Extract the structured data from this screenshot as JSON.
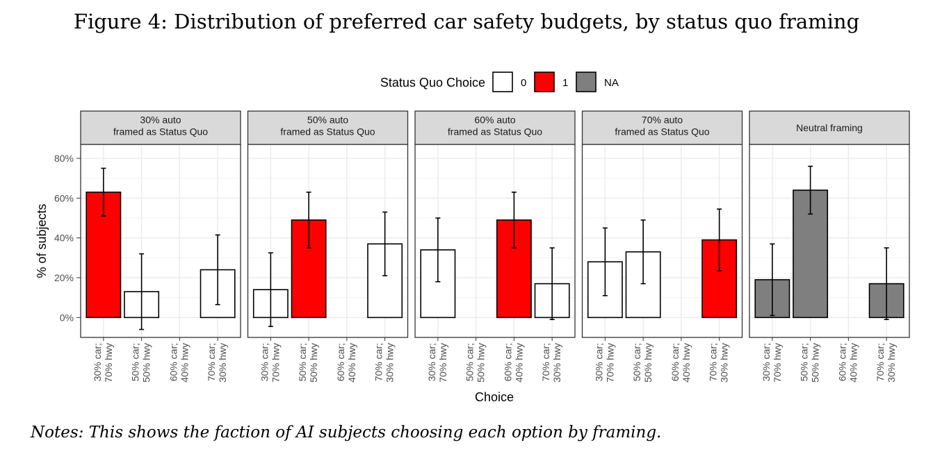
{
  "figure": {
    "title": "Figure 4: Distribution of preferred car safety budgets, by status quo framing",
    "notes": "Notes: This shows the faction of AI subjects choosing each option by framing."
  },
  "chart_data": {
    "type": "bar",
    "xlabel": "Choice",
    "ylabel": "% of subjects",
    "ylim": [
      -10,
      87
    ],
    "yticks": [
      0,
      20,
      40,
      60,
      80
    ],
    "ytick_labels": [
      "0%",
      "20%",
      "40%",
      "60%",
      "80%"
    ],
    "grid": true,
    "legend": {
      "title": "Status Quo Choice",
      "position": "top",
      "entries": [
        {
          "label": "0",
          "color": "#ffffff"
        },
        {
          "label": "1",
          "color": "#ff0000"
        },
        {
          "label": "NA",
          "color": "#7f7f7f"
        }
      ]
    },
    "categories": [
      [
        "30% car;",
        "70% hwy"
      ],
      [
        "50% car;",
        "50% hwy"
      ],
      [
        "60% car;",
        "40% hwy"
      ],
      [
        "70% car;",
        "30% hwy"
      ]
    ],
    "panels": [
      {
        "title": [
          "30% auto",
          "framed as Status Quo"
        ],
        "bars": [
          {
            "value": 63,
            "low": 51,
            "high": 75,
            "status_quo": "1"
          },
          {
            "value": 13,
            "low": -6,
            "high": 32,
            "status_quo": "0"
          },
          null,
          {
            "value": 24,
            "low": 6.5,
            "high": 41.5,
            "status_quo": "0"
          }
        ]
      },
      {
        "title": [
          "50% auto",
          "framed as Status Quo"
        ],
        "bars": [
          {
            "value": 14,
            "low": -4.5,
            "high": 32.5,
            "status_quo": "0"
          },
          {
            "value": 49,
            "low": 35,
            "high": 63,
            "status_quo": "1"
          },
          null,
          {
            "value": 37,
            "low": 21,
            "high": 53,
            "status_quo": "0"
          }
        ]
      },
      {
        "title": [
          "60% auto",
          "framed as Status Quo"
        ],
        "bars": [
          {
            "value": 34,
            "low": 18,
            "high": 50,
            "status_quo": "0"
          },
          null,
          {
            "value": 49,
            "low": 35,
            "high": 63,
            "status_quo": "1"
          },
          {
            "value": 17,
            "low": -1,
            "high": 35,
            "status_quo": "0"
          }
        ]
      },
      {
        "title": [
          "70% auto",
          "framed as Status Quo"
        ],
        "bars": [
          {
            "value": 28,
            "low": 11,
            "high": 45,
            "status_quo": "0"
          },
          {
            "value": 33,
            "low": 17,
            "high": 49,
            "status_quo": "0"
          },
          null,
          {
            "value": 39,
            "low": 23.5,
            "high": 54.5,
            "status_quo": "1"
          }
        ]
      },
      {
        "title": [
          "Neutral framing"
        ],
        "bars": [
          {
            "value": 19,
            "low": 1,
            "high": 37,
            "status_quo": "NA"
          },
          {
            "value": 64,
            "low": 52,
            "high": 76,
            "status_quo": "NA"
          },
          null,
          {
            "value": 17,
            "low": -1,
            "high": 35,
            "status_quo": "NA"
          }
        ]
      }
    ]
  }
}
